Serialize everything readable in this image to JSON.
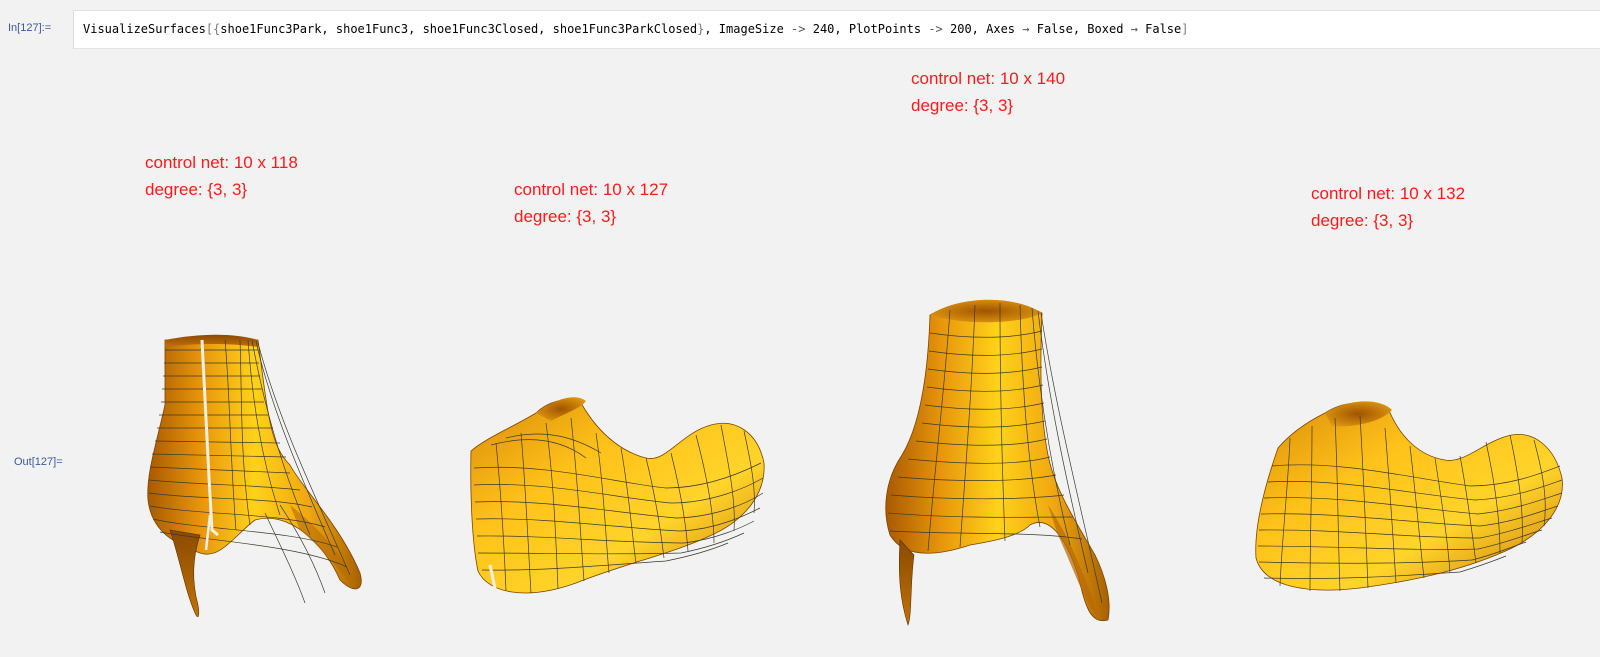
{
  "notebook": {
    "input_label": "In[127]:=",
    "output_label": "Out[127]=",
    "input": {
      "function": "VisualizeSurfaces",
      "open": "[{",
      "args": "shoe1Func3Park, shoe1Func3, shoe1Func3Closed, shoe1Func3ParkClosed",
      "close_list": "}",
      "options_a": ", ImageSize ",
      "arrow1": "->",
      "options_b": " 240, PlotPoints ",
      "arrow2": "->",
      "options_c": " 200, Axes ",
      "arrow3": "→",
      "options_d": " False, Boxed ",
      "arrow4": "→",
      "options_e": " False",
      "close": "]"
    }
  },
  "surfaces": [
    {
      "name": "shoe1Func3Park",
      "control_net": "control net: 10 x 118",
      "degree": "degree: {3, 3}"
    },
    {
      "name": "shoe1Func3",
      "control_net": "control net: 10 x 127",
      "degree": "degree: {3, 3}"
    },
    {
      "name": "shoe1Func3Closed",
      "control_net": "control net: 10 x 140",
      "degree": "degree: {3, 3}"
    },
    {
      "name": "shoe1Func3ParkClosed",
      "control_net": "control net: 10 x 132",
      "degree": "degree: {3, 3}"
    }
  ],
  "colors": {
    "annotation": "#ff1a1a",
    "surface_light": "#ffd21a",
    "surface_mid": "#f0a010",
    "surface_dark": "#b86400",
    "mesh": "#3a3a2a",
    "cell_label": "#3c5a9a"
  }
}
